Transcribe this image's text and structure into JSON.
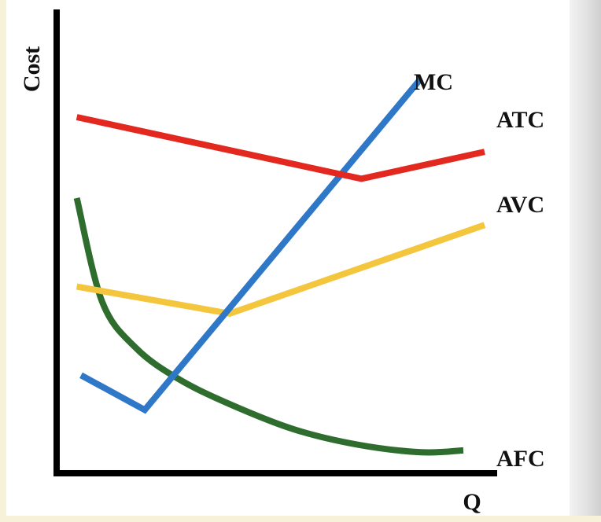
{
  "chart_data": {
    "type": "line",
    "title": "",
    "xlabel": "Q",
    "ylabel": "Cost",
    "xlim": [
      0,
      100
    ],
    "ylim": [
      0,
      100
    ],
    "grid": false,
    "legend": "inline-right",
    "series": [
      {
        "name": "MC",
        "color": "#2f78c8",
        "points": [
          [
            5,
            23
          ],
          [
            20,
            14
          ],
          [
            85,
            100
          ]
        ]
      },
      {
        "name": "ATC",
        "color": "#e2281f",
        "points": [
          [
            4,
            90
          ],
          [
            71,
            74
          ],
          [
            100,
            81
          ]
        ]
      },
      {
        "name": "AVC",
        "color": "#f3c63e",
        "points": [
          [
            4,
            46
          ],
          [
            40,
            39
          ],
          [
            100,
            62
          ]
        ]
      },
      {
        "name": "AFC",
        "color": "#2f6d2e",
        "points": [
          [
            4,
            69
          ],
          [
            10,
            42
          ],
          [
            18,
            30
          ],
          [
            28,
            22
          ],
          [
            40,
            15.5
          ],
          [
            55,
            9
          ],
          [
            70,
            5
          ],
          [
            85,
            3
          ],
          [
            95,
            3.5
          ]
        ]
      }
    ]
  }
}
